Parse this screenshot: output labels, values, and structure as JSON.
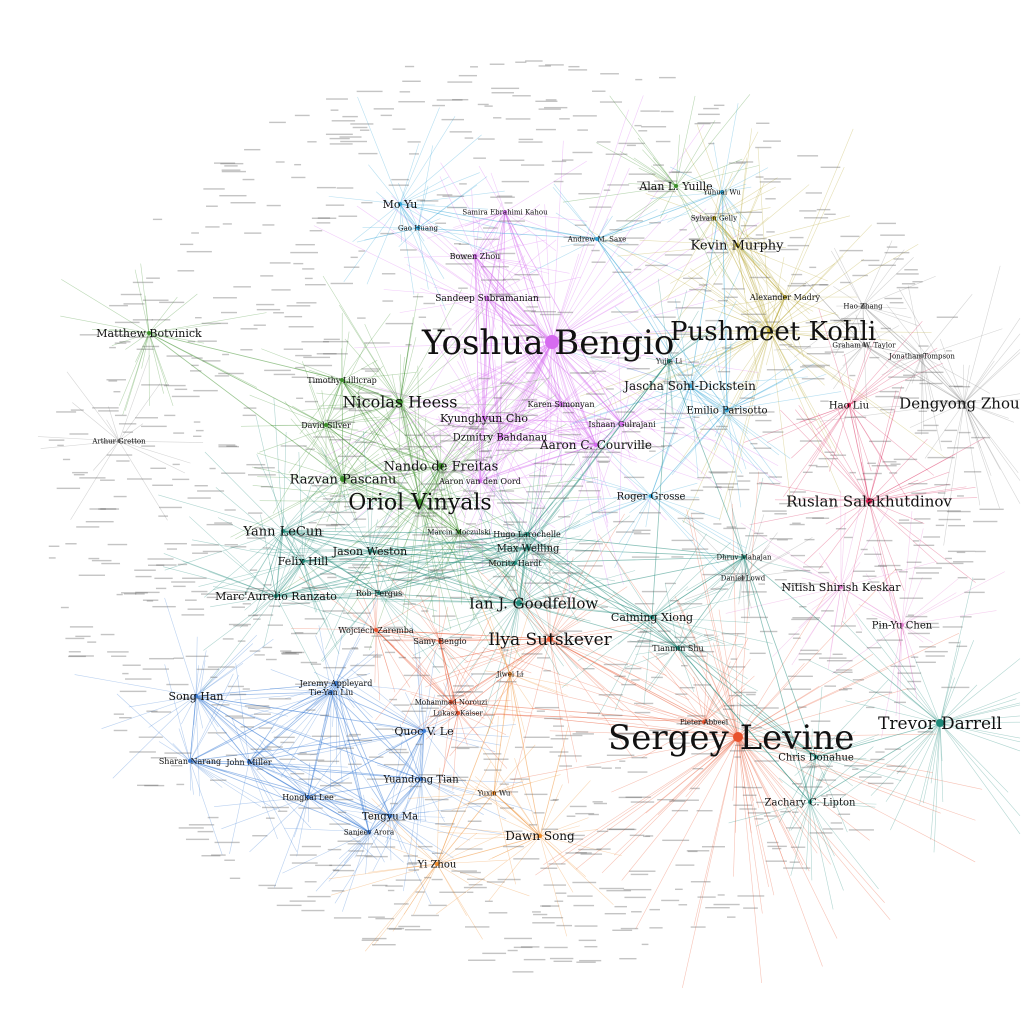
{
  "graph": {
    "type": "coauthorship-network",
    "colors": {
      "purple": "#d66bf0",
      "green": "#3c8f2a",
      "teal": "#1f8a7a",
      "blue": "#3a7bd5",
      "skyblue": "#2fa3d6",
      "red": "#e8532e",
      "crimson": "#d81b4f",
      "orange": "#ef8c2a",
      "olive": "#b5a22a",
      "pink": "#e37bd0",
      "gray": "#888888"
    },
    "authors": [
      {
        "name": "Yoshua Bengio",
        "group": "purple"
      },
      {
        "name": "Sergey Levine",
        "group": "red"
      },
      {
        "name": "Pushmeet Kohli",
        "group": "olive"
      },
      {
        "name": "Oriol Vinyals",
        "group": "green"
      },
      {
        "name": "Nicolas Heess",
        "group": "green"
      },
      {
        "name": "Ruslan Salakhutdinov",
        "group": "crimson"
      },
      {
        "name": "Ilya Sutskever",
        "group": "red"
      },
      {
        "name": "Ian J. Goodfellow",
        "group": "teal"
      },
      {
        "name": "Trevor Darrell",
        "group": "teal"
      },
      {
        "name": "Dengyong Zhou",
        "group": "gray"
      },
      {
        "name": "Kevin Murphy",
        "group": "olive"
      },
      {
        "name": "Nando de Freitas",
        "group": "green"
      },
      {
        "name": "Razvan Pascanu",
        "group": "green"
      },
      {
        "name": "Yann LeCun",
        "group": "teal"
      },
      {
        "name": "Aaron C. Courville",
        "group": "purple"
      },
      {
        "name": "Jascha Sohl-Dickstein",
        "group": "skyblue"
      },
      {
        "name": "Matthew Botvinick",
        "group": "green"
      },
      {
        "name": "Marc'Aurelio Ranzato",
        "group": "teal"
      },
      {
        "name": "Caiming Xiong",
        "group": "teal"
      },
      {
        "name": "Nitish Shirish Keskar",
        "group": "pink"
      },
      {
        "name": "Dawn Song",
        "group": "orange"
      },
      {
        "name": "Song Han",
        "group": "blue"
      },
      {
        "name": "Quoc V. Le",
        "group": "blue"
      },
      {
        "name": "Jason Weston",
        "group": "teal"
      },
      {
        "name": "Felix Hill",
        "group": "teal"
      },
      {
        "name": "Alan L. Yuille",
        "group": "green"
      },
      {
        "name": "Mo Yu",
        "group": "skyblue"
      },
      {
        "name": "Kyunghyun Cho",
        "group": "purple"
      },
      {
        "name": "Dzmitry Bahdanau",
        "group": "purple"
      },
      {
        "name": "Max Welling",
        "group": "teal"
      },
      {
        "name": "Roger Grosse",
        "group": "skyblue"
      },
      {
        "name": "Yuandong Tian",
        "group": "blue"
      },
      {
        "name": "Tengyu Ma",
        "group": "blue"
      },
      {
        "name": "Yi Zhou",
        "group": "orange"
      },
      {
        "name": "Chris Donahue",
        "group": "teal"
      },
      {
        "name": "Zachary C. Lipton",
        "group": "teal"
      },
      {
        "name": "Hao Liu",
        "group": "crimson"
      },
      {
        "name": "Pin-Yu Chen",
        "group": "pink"
      },
      {
        "name": "Emilio Parisotto",
        "group": "skyblue"
      },
      {
        "name": "Sandeep Subramanian",
        "group": "purple"
      },
      {
        "name": "Bowen Zhou",
        "group": "purple"
      },
      {
        "name": "Hongkai Lee",
        "group": "blue"
      },
      {
        "name": "Sharan Narang",
        "group": "blue"
      },
      {
        "name": "John Miller",
        "group": "blue"
      },
      {
        "name": "Tianmin Shu",
        "group": "teal"
      },
      {
        "name": "Wojciech Zaremba",
        "group": "red"
      },
      {
        "name": "Marcin Moczulski",
        "group": "green"
      },
      {
        "name": "Hugo Larochelle",
        "group": "teal"
      },
      {
        "name": "Moritz Hardt",
        "group": "teal"
      },
      {
        "name": "Rob Fergus",
        "group": "teal"
      },
      {
        "name": "Samy Bengio",
        "group": "red"
      },
      {
        "name": "Jeremy Appleyard",
        "group": "blue"
      },
      {
        "name": "Tie-Yan Liu",
        "group": "blue"
      },
      {
        "name": "Ishaan Gulrajani",
        "group": "purple"
      },
      {
        "name": "Karen Simonyan",
        "group": "purple"
      },
      {
        "name": "Aaron van den Oord",
        "group": "purple"
      },
      {
        "name": "David Silver",
        "group": "green"
      },
      {
        "name": "Timothy Lillicrap",
        "group": "green"
      },
      {
        "name": "Alexander Madry",
        "group": "olive"
      },
      {
        "name": "Graham W. Taylor",
        "group": "gray"
      },
      {
        "name": "Jonathan Tompson",
        "group": "gray"
      },
      {
        "name": "Hao Zhang",
        "group": "gray"
      },
      {
        "name": "Yujia Li",
        "group": "teal"
      },
      {
        "name": "Andrew M. Saxe",
        "group": "skyblue"
      },
      {
        "name": "Arthur Gretton",
        "group": "gray"
      },
      {
        "name": "Jiwei Li",
        "group": "orange"
      },
      {
        "name": "Yuhuai Wu",
        "group": "skyblue"
      },
      {
        "name": "Sanjeev Arora",
        "group": "blue"
      },
      {
        "name": "Mohammad Norouzi",
        "group": "red"
      },
      {
        "name": "Lukasz Kaiser",
        "group": "red"
      },
      {
        "name": "Dhruv Mahajan",
        "group": "teal"
      },
      {
        "name": "Pieter Abbeel",
        "group": "red"
      },
      {
        "name": "Yuxin Wu",
        "group": "orange"
      },
      {
        "name": "Samira Ebrahimi Kahou",
        "group": "purple"
      },
      {
        "name": "Gao Huang",
        "group": "skyblue"
      },
      {
        "name": "Sylvain Gelly",
        "group": "olive"
      },
      {
        "name": "Daniel Lowd",
        "group": "gray"
      }
    ]
  }
}
